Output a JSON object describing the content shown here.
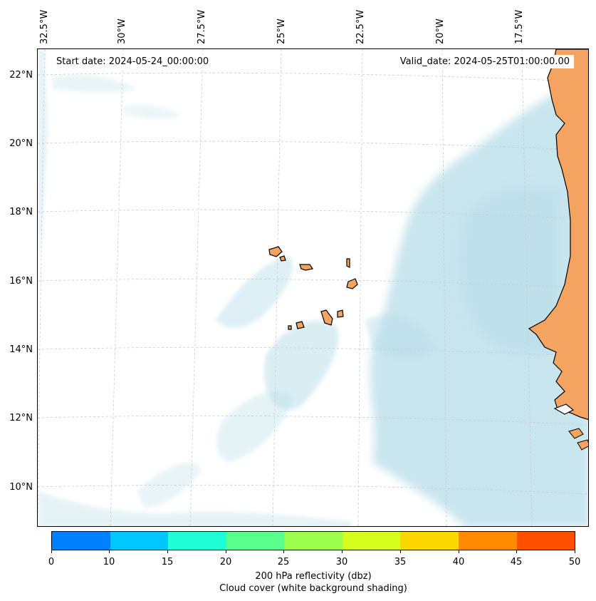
{
  "map": {
    "start_date": "Start date: 2024-05-24_00:00:00",
    "valid_date": "Valid_date: 2024-05-25T01:00:00.00",
    "lon_labels": [
      "32.5°W",
      "30°W",
      "27.5°W",
      "25°W",
      "22.5°W",
      "20°W",
      "17.5°W"
    ],
    "lat_labels": [
      "22°N",
      "20°N",
      "18°N",
      "16°N",
      "14°N",
      "12°N",
      "10°N"
    ],
    "land_color": "#f4a460",
    "cloud_color": "#b7dde9",
    "grid_color": "#c8c8c8"
  },
  "colorbar": {
    "ticks": [
      "0",
      "10",
      "15",
      "20",
      "25",
      "30",
      "35",
      "40",
      "45",
      "50"
    ],
    "colors": [
      "#0080ff",
      "#00c8ff",
      "#1effd7",
      "#5aff8c",
      "#9bff50",
      "#d7ff1e",
      "#ffd700",
      "#ff8c00",
      "#ff5000"
    ],
    "label_line1": "200 hPa reflectivity (dbz)",
    "label_line2": "Cloud cover (white background shading)"
  }
}
